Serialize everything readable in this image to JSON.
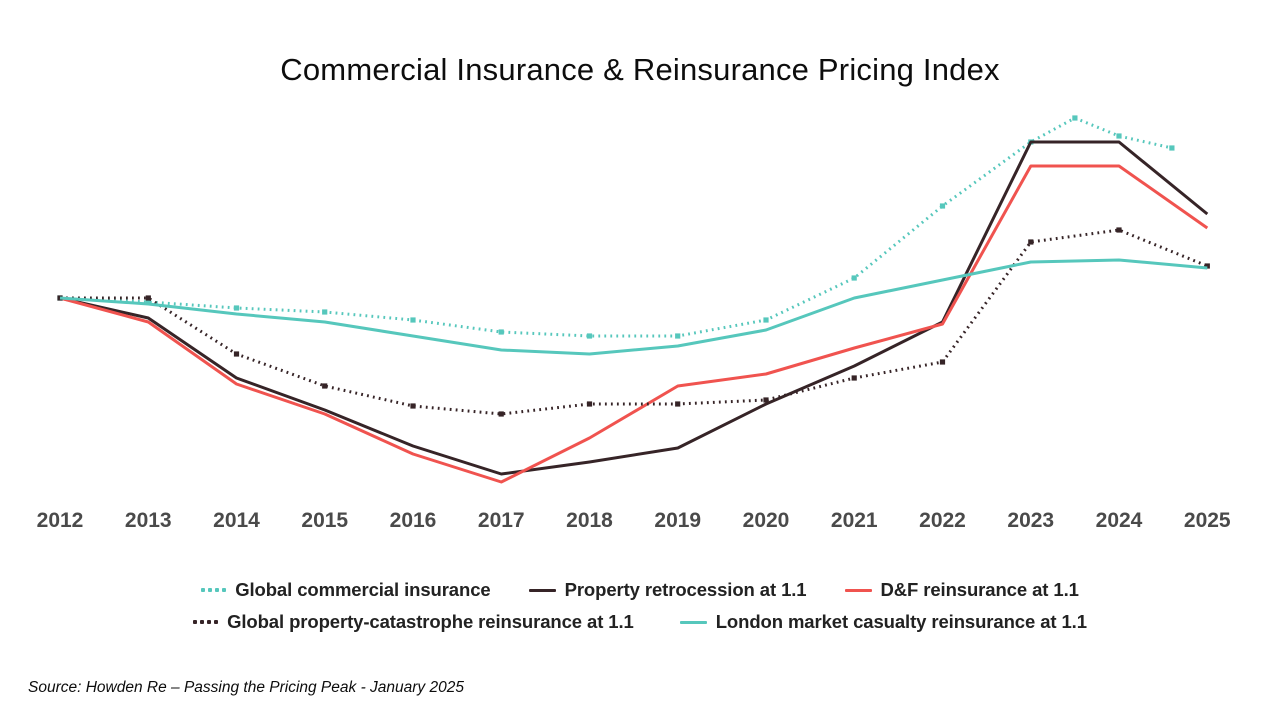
{
  "page": {
    "title": "Commercial Insurance & Reinsurance Pricing Index",
    "source": "Source: Howden Re – Passing the Pricing Peak -  January 2025"
  },
  "chart_data": {
    "type": "line",
    "title": "Commercial Insurance & Reinsurance Pricing Index",
    "xlabel": "",
    "ylabel": "",
    "x_categories": [
      2012,
      2013,
      2014,
      2015,
      2016,
      2017,
      2018,
      2019,
      2020,
      2021,
      2022,
      2023,
      2024,
      2025
    ],
    "y_axis_visible": false,
    "grid": false,
    "value_note": "pricing index, 2012 = 100 (no y-axis shown)",
    "ylim": [
      45,
      152
    ],
    "legend_position": "bottom",
    "series": [
      {
        "name": "Global commercial insurance",
        "style": "dotted",
        "color": "#56C7BC",
        "points": [
          [
            2012,
            100
          ],
          [
            2013,
            99
          ],
          [
            2014,
            97.5
          ],
          [
            2015,
            96.5
          ],
          [
            2016,
            94.5
          ],
          [
            2017,
            91.5
          ],
          [
            2018,
            90.5
          ],
          [
            2019,
            90.5
          ],
          [
            2020,
            94.5
          ],
          [
            2021,
            105
          ],
          [
            2022,
            123
          ],
          [
            2023,
            139
          ],
          [
            2023.5,
            145
          ],
          [
            2024,
            140.5
          ],
          [
            2024.6,
            137.5
          ]
        ]
      },
      {
        "name": "Property retrocession at 1.1",
        "style": "solid",
        "color": "#362427",
        "points": [
          [
            2012,
            100
          ],
          [
            2013,
            95
          ],
          [
            2014,
            80
          ],
          [
            2015,
            72
          ],
          [
            2016,
            63
          ],
          [
            2017,
            56
          ],
          [
            2018,
            59
          ],
          [
            2019,
            62.5
          ],
          [
            2020,
            73.5
          ],
          [
            2021,
            83
          ],
          [
            2022,
            94
          ],
          [
            2023,
            139
          ],
          [
            2024,
            139
          ],
          [
            2025,
            121
          ]
        ]
      },
      {
        "name": "D&F reinsurance at 1.1",
        "style": "solid",
        "color": "#F0534F",
        "points": [
          [
            2012,
            100
          ],
          [
            2013,
            94
          ],
          [
            2014,
            78.5
          ],
          [
            2015,
            71
          ],
          [
            2016,
            61
          ],
          [
            2017,
            54
          ],
          [
            2018,
            65
          ],
          [
            2019,
            78
          ],
          [
            2020,
            81
          ],
          [
            2021,
            87.5
          ],
          [
            2022,
            93.5
          ],
          [
            2023,
            133
          ],
          [
            2024,
            133
          ],
          [
            2025,
            117.5
          ]
        ]
      },
      {
        "name": "Global property-catastrophe reinsurance at 1.1",
        "style": "dotted",
        "color": "#362427",
        "points": [
          [
            2012,
            100
          ],
          [
            2013,
            100
          ],
          [
            2014,
            86
          ],
          [
            2015,
            78
          ],
          [
            2016,
            73
          ],
          [
            2017,
            71
          ],
          [
            2018,
            73.5
          ],
          [
            2019,
            73.5
          ],
          [
            2020,
            74.5
          ],
          [
            2021,
            80
          ],
          [
            2022,
            84
          ],
          [
            2023,
            114
          ],
          [
            2024,
            117
          ],
          [
            2025,
            108
          ]
        ]
      },
      {
        "name": "London market casualty reinsurance at 1.1",
        "style": "solid",
        "color": "#56C7BC",
        "points": [
          [
            2012,
            100
          ],
          [
            2013,
            98.5
          ],
          [
            2014,
            96
          ],
          [
            2015,
            94
          ],
          [
            2016,
            90.5
          ],
          [
            2017,
            87
          ],
          [
            2018,
            86
          ],
          [
            2019,
            88
          ],
          [
            2020,
            92
          ],
          [
            2021,
            100
          ],
          [
            2022,
            104.5
          ],
          [
            2023,
            109
          ],
          [
            2024,
            109.5
          ],
          [
            2025,
            107.5
          ]
        ]
      }
    ],
    "legend_rows": [
      [
        0,
        1,
        2
      ],
      [
        3,
        4
      ]
    ]
  }
}
